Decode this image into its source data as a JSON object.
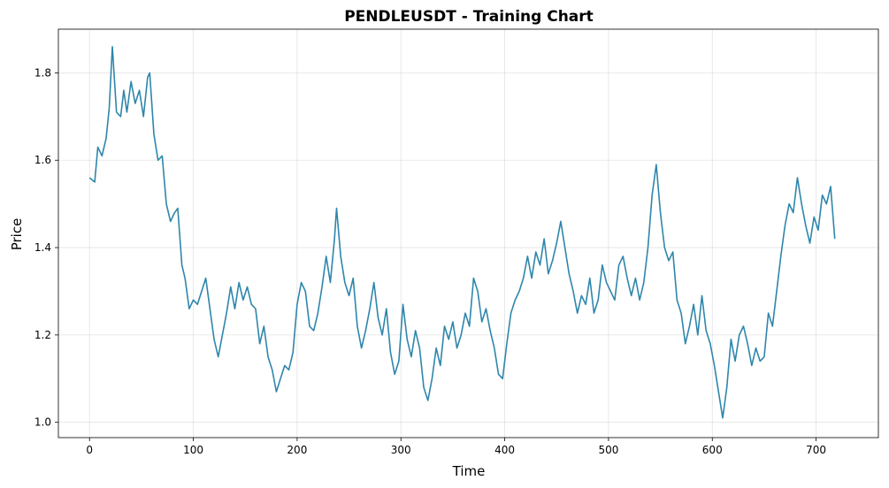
{
  "chart_data": {
    "type": "line",
    "title": "PENDLEUSDT - Training Chart",
    "xlabel": "Time",
    "ylabel": "Price",
    "xlim": [
      -30,
      760
    ],
    "ylim": [
      0.965,
      1.9
    ],
    "xticks": [
      0,
      100,
      200,
      300,
      400,
      500,
      600,
      700
    ],
    "yticks": [
      1.0,
      1.2,
      1.4,
      1.6,
      1.8
    ],
    "ytick_labels": [
      "1.0",
      "1.2",
      "1.4",
      "1.6",
      "1.8"
    ],
    "grid": true,
    "series": [
      {
        "name": "",
        "color": "#2e86ab",
        "points": [
          [
            0,
            1.56
          ],
          [
            5,
            1.55
          ],
          [
            8,
            1.63
          ],
          [
            12,
            1.61
          ],
          [
            16,
            1.65
          ],
          [
            19,
            1.72
          ],
          [
            22,
            1.86
          ],
          [
            26,
            1.71
          ],
          [
            30,
            1.7
          ],
          [
            33,
            1.76
          ],
          [
            36,
            1.71
          ],
          [
            40,
            1.78
          ],
          [
            44,
            1.73
          ],
          [
            48,
            1.76
          ],
          [
            52,
            1.7
          ],
          [
            56,
            1.79
          ],
          [
            58,
            1.8
          ],
          [
            62,
            1.66
          ],
          [
            66,
            1.6
          ],
          [
            70,
            1.61
          ],
          [
            74,
            1.5
          ],
          [
            78,
            1.46
          ],
          [
            82,
            1.48
          ],
          [
            85,
            1.49
          ],
          [
            89,
            1.36
          ],
          [
            92,
            1.33
          ],
          [
            96,
            1.26
          ],
          [
            100,
            1.28
          ],
          [
            104,
            1.27
          ],
          [
            108,
            1.3
          ],
          [
            112,
            1.33
          ],
          [
            116,
            1.26
          ],
          [
            120,
            1.19
          ],
          [
            124,
            1.15
          ],
          [
            128,
            1.2
          ],
          [
            132,
            1.25
          ],
          [
            136,
            1.31
          ],
          [
            140,
            1.26
          ],
          [
            144,
            1.32
          ],
          [
            148,
            1.28
          ],
          [
            152,
            1.31
          ],
          [
            156,
            1.27
          ],
          [
            160,
            1.26
          ],
          [
            164,
            1.18
          ],
          [
            168,
            1.22
          ],
          [
            172,
            1.15
          ],
          [
            176,
            1.12
          ],
          [
            180,
            1.07
          ],
          [
            184,
            1.1
          ],
          [
            188,
            1.13
          ],
          [
            192,
            1.12
          ],
          [
            196,
            1.16
          ],
          [
            200,
            1.27
          ],
          [
            204,
            1.32
          ],
          [
            208,
            1.3
          ],
          [
            212,
            1.22
          ],
          [
            216,
            1.21
          ],
          [
            220,
            1.25
          ],
          [
            224,
            1.31
          ],
          [
            228,
            1.38
          ],
          [
            232,
            1.32
          ],
          [
            236,
            1.42
          ],
          [
            238,
            1.49
          ],
          [
            242,
            1.38
          ],
          [
            246,
            1.32
          ],
          [
            250,
            1.29
          ],
          [
            254,
            1.33
          ],
          [
            258,
            1.22
          ],
          [
            262,
            1.17
          ],
          [
            266,
            1.21
          ],
          [
            270,
            1.26
          ],
          [
            274,
            1.32
          ],
          [
            278,
            1.24
          ],
          [
            282,
            1.2
          ],
          [
            286,
            1.26
          ],
          [
            290,
            1.16
          ],
          [
            294,
            1.11
          ],
          [
            298,
            1.14
          ],
          [
            302,
            1.27
          ],
          [
            306,
            1.19
          ],
          [
            310,
            1.15
          ],
          [
            314,
            1.21
          ],
          [
            318,
            1.17
          ],
          [
            322,
            1.08
          ],
          [
            326,
            1.05
          ],
          [
            330,
            1.1
          ],
          [
            334,
            1.17
          ],
          [
            338,
            1.13
          ],
          [
            342,
            1.22
          ],
          [
            346,
            1.19
          ],
          [
            350,
            1.23
          ],
          [
            354,
            1.17
          ],
          [
            358,
            1.2
          ],
          [
            362,
            1.25
          ],
          [
            366,
            1.22
          ],
          [
            370,
            1.33
          ],
          [
            374,
            1.3
          ],
          [
            378,
            1.23
          ],
          [
            382,
            1.26
          ],
          [
            386,
            1.21
          ],
          [
            390,
            1.17
          ],
          [
            394,
            1.11
          ],
          [
            398,
            1.1
          ],
          [
            402,
            1.18
          ],
          [
            406,
            1.25
          ],
          [
            410,
            1.28
          ],
          [
            414,
            1.3
          ],
          [
            418,
            1.33
          ],
          [
            422,
            1.38
          ],
          [
            426,
            1.33
          ],
          [
            430,
            1.39
          ],
          [
            434,
            1.36
          ],
          [
            438,
            1.42
          ],
          [
            442,
            1.34
          ],
          [
            446,
            1.37
          ],
          [
            450,
            1.41
          ],
          [
            454,
            1.46
          ],
          [
            458,
            1.4
          ],
          [
            462,
            1.34
          ],
          [
            466,
            1.3
          ],
          [
            470,
            1.25
          ],
          [
            474,
            1.29
          ],
          [
            478,
            1.27
          ],
          [
            482,
            1.33
          ],
          [
            486,
            1.25
          ],
          [
            490,
            1.28
          ],
          [
            494,
            1.36
          ],
          [
            498,
            1.32
          ],
          [
            502,
            1.3
          ],
          [
            506,
            1.28
          ],
          [
            510,
            1.36
          ],
          [
            514,
            1.38
          ],
          [
            518,
            1.33
          ],
          [
            522,
            1.29
          ],
          [
            526,
            1.33
          ],
          [
            530,
            1.28
          ],
          [
            534,
            1.32
          ],
          [
            538,
            1.4
          ],
          [
            542,
            1.52
          ],
          [
            546,
            1.59
          ],
          [
            550,
            1.48
          ],
          [
            554,
            1.4
          ],
          [
            558,
            1.37
          ],
          [
            562,
            1.39
          ],
          [
            566,
            1.28
          ],
          [
            570,
            1.25
          ],
          [
            574,
            1.18
          ],
          [
            578,
            1.22
          ],
          [
            582,
            1.27
          ],
          [
            586,
            1.2
          ],
          [
            590,
            1.29
          ],
          [
            594,
            1.21
          ],
          [
            598,
            1.18
          ],
          [
            602,
            1.13
          ],
          [
            606,
            1.07
          ],
          [
            610,
            1.01
          ],
          [
            614,
            1.08
          ],
          [
            618,
            1.19
          ],
          [
            622,
            1.14
          ],
          [
            626,
            1.2
          ],
          [
            630,
            1.22
          ],
          [
            634,
            1.18
          ],
          [
            638,
            1.13
          ],
          [
            642,
            1.17
          ],
          [
            646,
            1.14
          ],
          [
            650,
            1.15
          ],
          [
            654,
            1.25
          ],
          [
            658,
            1.22
          ],
          [
            662,
            1.3
          ],
          [
            666,
            1.38
          ],
          [
            670,
            1.45
          ],
          [
            674,
            1.5
          ],
          [
            678,
            1.48
          ],
          [
            682,
            1.56
          ],
          [
            686,
            1.5
          ],
          [
            690,
            1.45
          ],
          [
            694,
            1.41
          ],
          [
            698,
            1.47
          ],
          [
            702,
            1.44
          ],
          [
            706,
            1.52
          ],
          [
            710,
            1.5
          ],
          [
            714,
            1.54
          ],
          [
            718,
            1.42
          ]
        ]
      }
    ]
  }
}
